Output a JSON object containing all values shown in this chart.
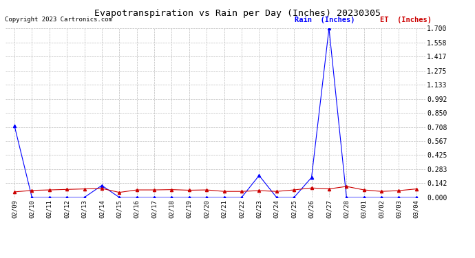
{
  "title": "Evapotranspiration vs Rain per Day (Inches) 20230305",
  "copyright": "Copyright 2023 Cartronics.com",
  "legend_rain": "Rain  (Inches)",
  "legend_et": "ET  (Inches)",
  "dates": [
    "02/09",
    "02/10",
    "02/11",
    "02/12",
    "02/13",
    "02/14",
    "02/15",
    "02/16",
    "02/17",
    "02/18",
    "02/19",
    "02/20",
    "02/21",
    "02/22",
    "02/23",
    "02/24",
    "02/25",
    "02/26",
    "02/27",
    "02/28",
    "03/01",
    "03/02",
    "03/03",
    "03/04"
  ],
  "rain": [
    0.72,
    0.0,
    0.0,
    0.0,
    0.0,
    0.12,
    0.0,
    0.0,
    0.0,
    0.0,
    0.0,
    0.0,
    0.0,
    0.0,
    0.22,
    0.0,
    0.0,
    0.2,
    1.7,
    0.0,
    0.0,
    0.0,
    0.0,
    0.0
  ],
  "et": [
    0.055,
    0.07,
    0.075,
    0.08,
    0.085,
    0.09,
    0.05,
    0.075,
    0.075,
    0.078,
    0.072,
    0.075,
    0.06,
    0.06,
    0.068,
    0.06,
    0.075,
    0.095,
    0.085,
    0.11,
    0.075,
    0.06,
    0.068,
    0.085
  ],
  "rain_color": "#0000ff",
  "et_color": "#cc0000",
  "grid_color": "#bbbbbb",
  "background_color": "#ffffff",
  "title_color": "#000000",
  "copyright_color": "#000000",
  "ylim": [
    0.0,
    1.7
  ],
  "yticks": [
    0.0,
    0.142,
    0.283,
    0.425,
    0.567,
    0.708,
    0.85,
    0.992,
    1.133,
    1.275,
    1.417,
    1.558,
    1.7
  ]
}
